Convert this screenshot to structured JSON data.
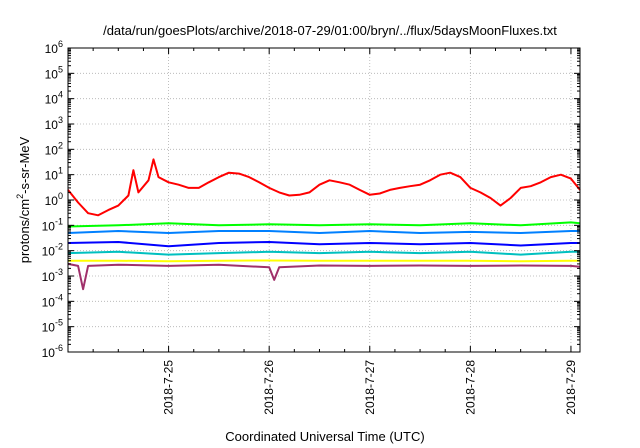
{
  "chart_data": {
    "type": "line",
    "title": "/data/run/goesPlots/archive/2018-07-29/01:00/bryn/../flux/5daysMoonFluxes.txt",
    "xlabel": "Coordinated Universal Time (UTC)",
    "ylabel": {
      "pre": "protons/cm",
      "sup": "2",
      "post": "-s-sr-MeV"
    },
    "y_scale": "log",
    "ylim_exp": [
      -6,
      6
    ],
    "y_tick_exponents": [
      "-6",
      "-5",
      "-4",
      "-3",
      "-2",
      "-1",
      "0",
      "1",
      "2",
      "3",
      "4",
      "5",
      "6"
    ],
    "y_tick_base": "10",
    "xlim_days": [
      24.0,
      29.09
    ],
    "x_ticks": [
      {
        "label": "2018-7-25",
        "day": 25
      },
      {
        "label": "2018-7-26",
        "day": 26
      },
      {
        "label": "2018-7-27",
        "day": 27
      },
      {
        "label": "2018-7-28",
        "day": 28
      },
      {
        "label": "2018-7-29",
        "day": 29
      }
    ],
    "grid": true,
    "series": [
      {
        "color": "#ff0000",
        "day": [
          24.0,
          24.1,
          24.2,
          24.3,
          24.4,
          24.5,
          24.6,
          24.65,
          24.7,
          24.8,
          24.85,
          24.9,
          25.0,
          25.1,
          25.2,
          25.3,
          25.4,
          25.5,
          25.6,
          25.7,
          25.8,
          25.9,
          26.0,
          26.1,
          26.2,
          26.3,
          26.4,
          26.5,
          26.6,
          26.7,
          26.8,
          26.9,
          27.0,
          27.1,
          27.2,
          27.3,
          27.4,
          27.5,
          27.6,
          27.7,
          27.8,
          27.9,
          28.0,
          28.1,
          28.2,
          28.3,
          28.4,
          28.5,
          28.6,
          28.7,
          28.8,
          28.9,
          29.0,
          29.09
        ],
        "value": [
          2.5,
          0.8,
          0.3,
          0.25,
          0.4,
          0.6,
          1.5,
          15,
          2,
          6,
          40,
          8,
          5,
          4,
          3,
          3,
          5,
          8,
          12,
          11,
          8,
          5,
          3,
          2,
          1.5,
          1.6,
          2,
          4,
          6,
          5,
          4,
          2.5,
          1.6,
          1.8,
          2.5,
          3,
          3.5,
          4,
          6,
          10,
          12,
          8,
          3,
          2,
          1.2,
          0.6,
          1.2,
          3,
          3.5,
          5,
          8,
          10,
          7,
          2.5
        ]
      },
      {
        "color": "#00ff00",
        "day": [
          24.0,
          24.5,
          25.0,
          25.5,
          26.0,
          26.5,
          27.0,
          27.5,
          28.0,
          28.5,
          29.0,
          29.09
        ],
        "value": [
          0.09,
          0.1,
          0.12,
          0.1,
          0.11,
          0.1,
          0.11,
          0.1,
          0.12,
          0.1,
          0.13,
          0.12
        ]
      },
      {
        "color": "#0080ff",
        "day": [
          24.0,
          24.5,
          25.0,
          25.5,
          26.0,
          26.5,
          27.0,
          27.5,
          28.0,
          28.5,
          29.0,
          29.09
        ],
        "value": [
          0.05,
          0.06,
          0.05,
          0.06,
          0.06,
          0.05,
          0.06,
          0.05,
          0.055,
          0.05,
          0.06,
          0.06
        ]
      },
      {
        "color": "#0000ff",
        "day": [
          24.0,
          24.5,
          25.0,
          25.5,
          26.0,
          26.5,
          27.0,
          27.5,
          28.0,
          28.5,
          29.0,
          29.09
        ],
        "value": [
          0.02,
          0.022,
          0.015,
          0.02,
          0.022,
          0.018,
          0.02,
          0.018,
          0.02,
          0.016,
          0.02,
          0.02
        ]
      },
      {
        "color": "#00c0c0",
        "day": [
          24.0,
          24.5,
          25.0,
          25.5,
          26.0,
          26.5,
          27.0,
          27.5,
          28.0,
          28.5,
          29.0,
          29.09
        ],
        "value": [
          0.008,
          0.009,
          0.007,
          0.008,
          0.009,
          0.008,
          0.009,
          0.008,
          0.009,
          0.007,
          0.009,
          0.009
        ]
      },
      {
        "color": "#ffff00",
        "day": [
          24.0,
          24.5,
          25.0,
          25.5,
          26.0,
          26.5,
          27.0,
          27.5,
          28.0,
          28.5,
          29.0,
          29.09
        ],
        "value": [
          0.004,
          0.004,
          0.0038,
          0.004,
          0.0041,
          0.004,
          0.004,
          0.004,
          0.004,
          0.0038,
          0.004,
          0.004
        ]
      },
      {
        "color": "#a0306a",
        "day": [
          24.0,
          24.1,
          24.15,
          24.2,
          24.5,
          25.0,
          25.5,
          26.0,
          26.05,
          26.1,
          26.5,
          27.0,
          27.5,
          28.0,
          28.5,
          29.0,
          29.09
        ],
        "value": [
          0.003,
          0.0025,
          0.0003,
          0.0025,
          0.0028,
          0.0025,
          0.0028,
          0.0022,
          0.0007,
          0.0022,
          0.0026,
          0.0025,
          0.0026,
          0.0025,
          0.0026,
          0.0025,
          0.0023
        ]
      }
    ]
  }
}
